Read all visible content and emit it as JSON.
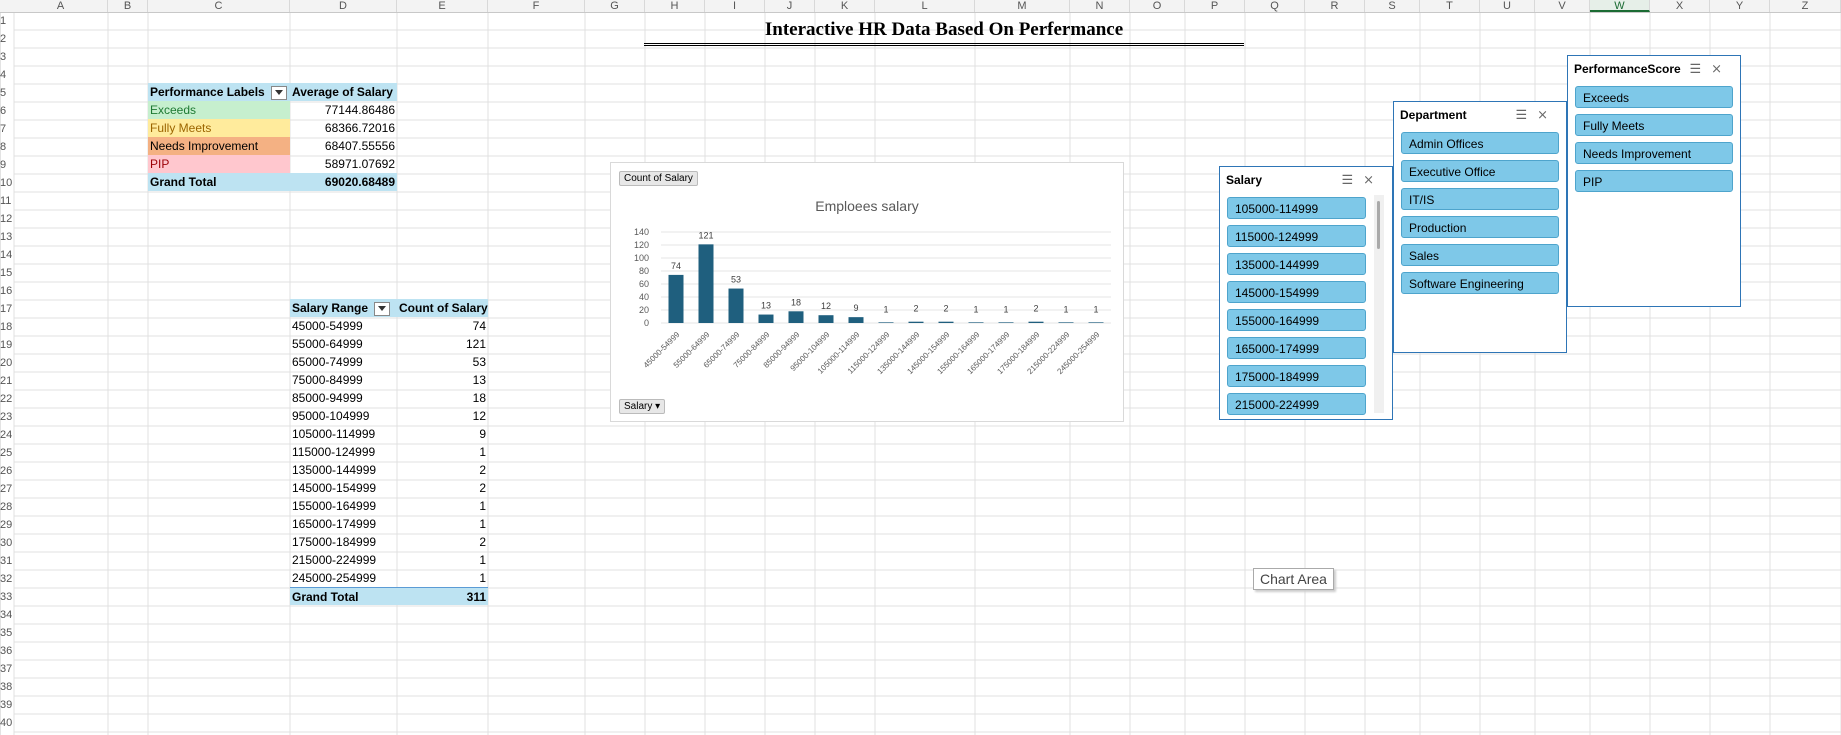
{
  "title": "Interactive HR Data Based On Perfermance",
  "columns": [
    "A",
    "B",
    "C",
    "D",
    "E",
    "F",
    "G",
    "H",
    "I",
    "J",
    "K",
    "L",
    "M",
    "N",
    "O",
    "P",
    "Q",
    "R",
    "S",
    "T",
    "U",
    "V",
    "W",
    "X",
    "Y",
    "Z"
  ],
  "rows": [
    "1",
    "2",
    "3",
    "4",
    "5",
    "6",
    "7",
    "8",
    "9",
    "10",
    "11",
    "12",
    "13",
    "14",
    "15",
    "16",
    "17",
    "18",
    "19",
    "20",
    "21",
    "22",
    "23",
    "24",
    "25",
    "26",
    "27",
    "28",
    "29",
    "30",
    "31",
    "32",
    "33",
    "34",
    "35",
    "36",
    "37",
    "38",
    "39",
    "40"
  ],
  "perf_pivot": {
    "header_label": "Performance Labels",
    "header_value": "Average of Salary",
    "rows": [
      {
        "label": "Exceeds",
        "value": "77144.86486",
        "color": "#c6efce",
        "text": "#1e7a33"
      },
      {
        "label": "Fully Meets",
        "value": "68366.72016",
        "color": "#ffeb9c",
        "text": "#9c6500"
      },
      {
        "label": "Needs Improvement",
        "value": "68407.55556",
        "color": "#f4b183",
        "text": "#000000"
      },
      {
        "label": "PIP",
        "value": "58971.07692",
        "color": "#ffc7ce",
        "text": "#9c0006"
      }
    ],
    "total_label": "Grand Total",
    "total_value": "69020.68489"
  },
  "salary_pivot": {
    "header_label": "Salary Range",
    "header_value": "Count of Salary",
    "rows": [
      {
        "label": "45000-54999",
        "value": "74"
      },
      {
        "label": "55000-64999",
        "value": "121"
      },
      {
        "label": "65000-74999",
        "value": "53"
      },
      {
        "label": "75000-84999",
        "value": "13"
      },
      {
        "label": "85000-94999",
        "value": "18"
      },
      {
        "label": "95000-104999",
        "value": "12"
      },
      {
        "label": "105000-114999",
        "value": "9"
      },
      {
        "label": "115000-124999",
        "value": "1"
      },
      {
        "label": "135000-144999",
        "value": "2"
      },
      {
        "label": "145000-154999",
        "value": "2"
      },
      {
        "label": "155000-164999",
        "value": "1"
      },
      {
        "label": "165000-174999",
        "value": "1"
      },
      {
        "label": "175000-184999",
        "value": "2"
      },
      {
        "label": "215000-224999",
        "value": "1"
      },
      {
        "label": "245000-254999",
        "value": "1"
      }
    ],
    "total_label": "Grand Total",
    "total_value": "311"
  },
  "chart": {
    "field_value_button": "Count of Salary",
    "field_axis_button": "Salary"
  },
  "chart_data": {
    "type": "bar",
    "title": "Emploees salary",
    "categories": [
      "45000-54999",
      "55000-64999",
      "65000-74999",
      "75000-84999",
      "85000-94999",
      "95000-104999",
      "105000-114999",
      "115000-124999",
      "135000-144999",
      "145000-154999",
      "155000-164999",
      "165000-174999",
      "175000-184999",
      "215000-224999",
      "245000-254999"
    ],
    "values": [
      74,
      121,
      53,
      13,
      18,
      12,
      9,
      1,
      2,
      2,
      1,
      1,
      2,
      1,
      1
    ],
    "ylim": [
      0,
      140
    ],
    "yticks": [
      0,
      20,
      40,
      60,
      80,
      100,
      120,
      140
    ],
    "data_labels": true,
    "grid": true,
    "color": "#1f5f7e"
  },
  "slicers": {
    "salary": {
      "title": "Salary",
      "items": [
        "105000-114999",
        "115000-124999",
        "135000-144999",
        "145000-154999",
        "155000-164999",
        "165000-174999",
        "175000-184999",
        "215000-224999"
      ]
    },
    "department": {
      "title": "Department",
      "items": [
        "Admin Offices",
        "Executive Office",
        "IT/IS",
        "Production",
        "Sales",
        "Software Engineering"
      ]
    },
    "performance": {
      "title": "PerformanceScore",
      "items": [
        "Exceeds",
        "Fully Meets",
        "Needs Improvement",
        "PIP"
      ]
    }
  },
  "tooltip": "Chart Area"
}
